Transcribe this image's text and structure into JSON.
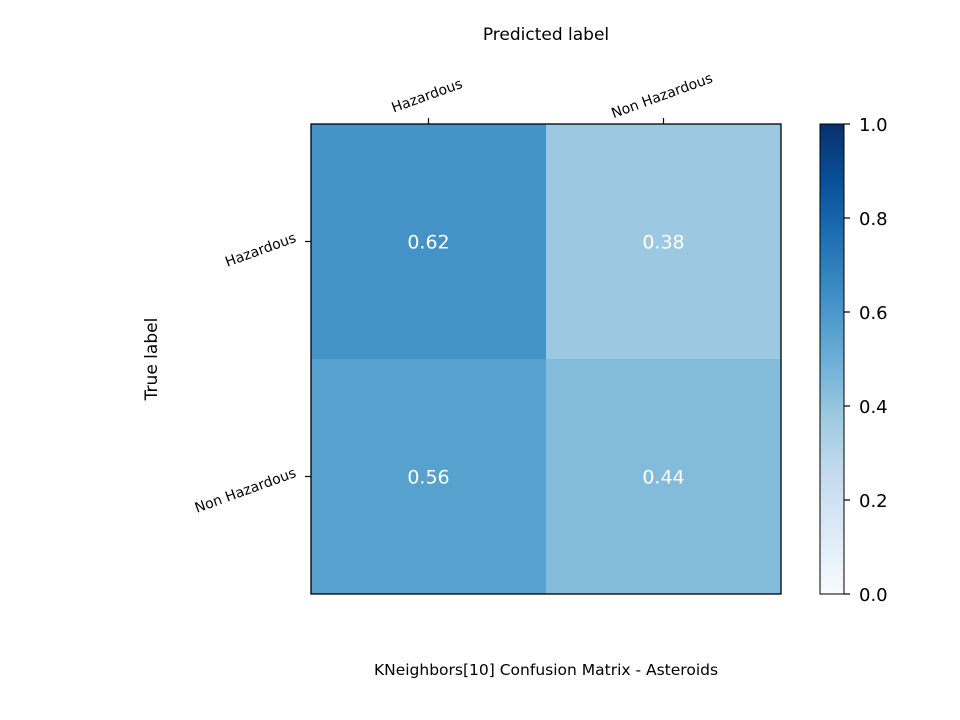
{
  "chart_data": {
    "type": "heatmap",
    "title": "KNeighbors[10]  Confusion Matrix - Asteroids",
    "xlabel": "Predicted label",
    "ylabel": "True label",
    "x_categories": [
      "Hazardous",
      "Non Hazardous"
    ],
    "y_categories": [
      "Hazardous",
      "Non Hazardous"
    ],
    "values": [
      [
        0.62,
        0.38
      ],
      [
        0.56,
        0.44
      ]
    ],
    "cell_labels": [
      [
        "0.62",
        "0.38"
      ],
      [
        "0.56",
        "0.44"
      ]
    ],
    "colormap": "Blues",
    "colorbar": {
      "range": [
        0.0,
        1.0
      ],
      "ticks": [
        "0.0",
        "0.2",
        "0.4",
        "0.6",
        "0.8",
        "1.0"
      ]
    },
    "grid": false,
    "x_tick_position": "top"
  }
}
